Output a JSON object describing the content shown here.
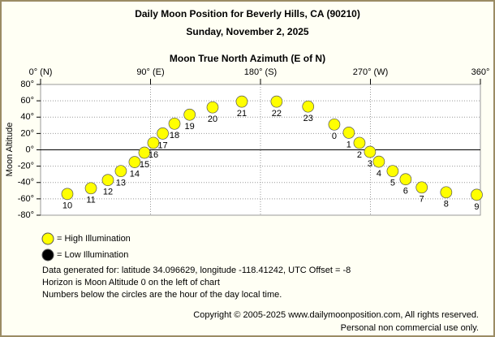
{
  "chart_data": {
    "type": "scatter",
    "title": "Daily Moon Position for Beverly Hills, CA (90210)",
    "subtitle": "Sunday, November 2, 2025",
    "x_label": "Moon True North Azimuth (E of N)",
    "y_label": "Moon Altitude",
    "xlim": [
      0,
      360
    ],
    "ylim": [
      -80,
      80
    ],
    "xticks": [
      {
        "value": 0,
        "label": "0° (N)"
      },
      {
        "value": 90,
        "label": "90° (E)"
      },
      {
        "value": 180,
        "label": "180° (S)"
      },
      {
        "value": 270,
        "label": "270° (W)"
      },
      {
        "value": 360,
        "label": "360°"
      }
    ],
    "yticks": [
      {
        "value": 80,
        "label": "80°"
      },
      {
        "value": 60,
        "label": "60°"
      },
      {
        "value": 40,
        "label": "40°"
      },
      {
        "value": 20,
        "label": "20°"
      },
      {
        "value": 0,
        "label": "0°"
      },
      {
        "value": -20,
        "label": "-20°"
      },
      {
        "value": -40,
        "label": "-40°"
      },
      {
        "value": -60,
        "label": "-60°"
      },
      {
        "value": -80,
        "label": "-80°"
      }
    ],
    "grid": true,
    "x": [
      21.9,
      41.2,
      55.1,
      65.7,
      77,
      85,
      92.3,
      100,
      109.6,
      122,
      140.8,
      164.7,
      193.2,
      219,
      240.4,
      252.3,
      261,
      269.6,
      276.9,
      288.2,
      298.8,
      312,
      332,
      357
    ],
    "values": [
      -54,
      -47,
      -37,
      -26,
      -15,
      -3.5,
      8.5,
      20,
      32,
      43,
      52,
      59,
      59,
      53,
      31,
      21,
      8.5,
      -2.5,
      -14.5,
      -26,
      -36,
      -46,
      -52,
      -55
    ],
    "point_labels": [
      "10",
      "11",
      "12",
      "13",
      "14",
      "15",
      "16",
      "17",
      "18",
      "19",
      "20",
      "21",
      "22",
      "23",
      "0",
      "1",
      "2",
      "3",
      "4",
      "5",
      "6",
      "7",
      "8",
      "9"
    ],
    "legend": [
      {
        "label": "= High Illumination",
        "color": "#ffff00"
      },
      {
        "label": "= Low Illumination",
        "color": "#000000"
      }
    ],
    "notes": [
      "Data generated for: latitude 34.096629, longitude -118.41242, UTC Offset = -8",
      "Horizon is Moon Altitude 0 on the left of chart",
      "Numbers below the circles are the hour of the day local time."
    ],
    "copyright": [
      "Copyright © 2005-2025 www.dailymoonposition.com, All rights reserved.",
      "Personal non commercial use only."
    ]
  }
}
